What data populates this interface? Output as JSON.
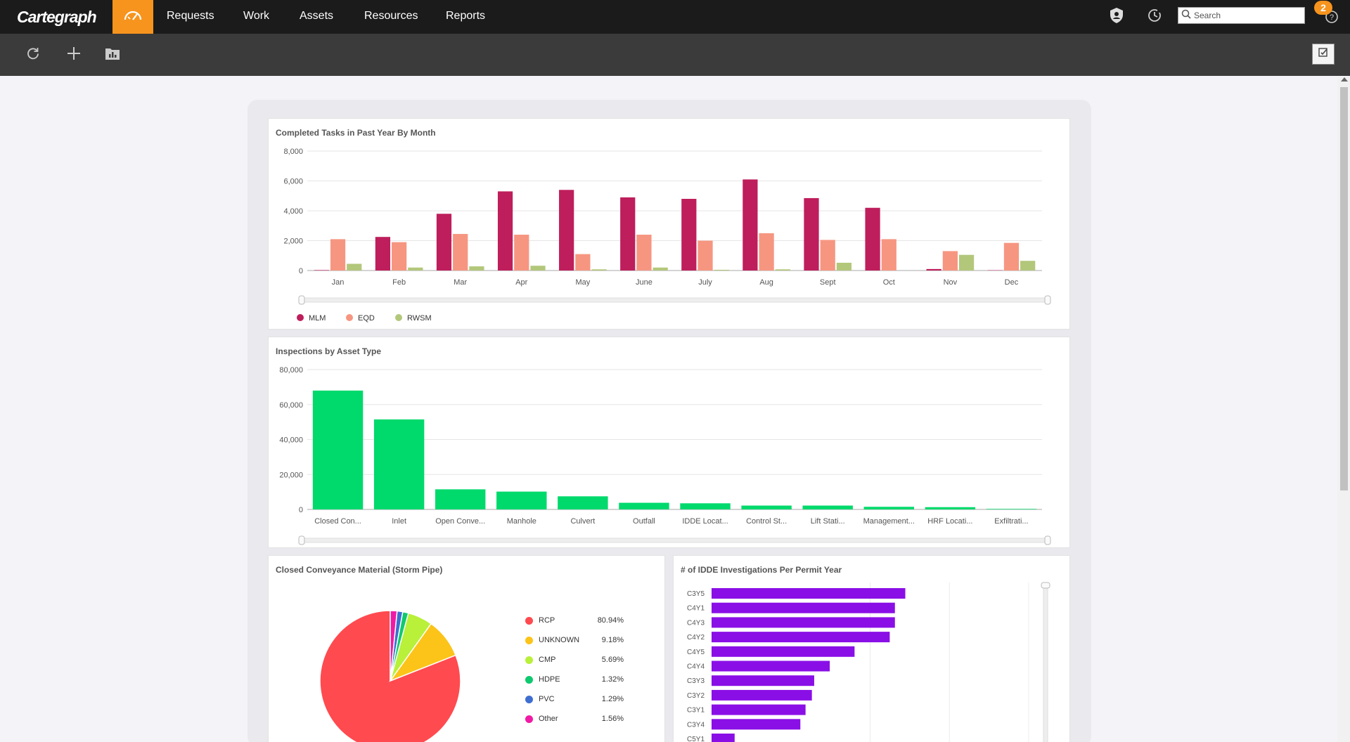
{
  "app": {
    "logo_text": "Cartegraph",
    "nav": [
      {
        "label": "Requests"
      },
      {
        "label": "Work"
      },
      {
        "label": "Assets"
      },
      {
        "label": "Resources"
      },
      {
        "label": "Reports"
      }
    ],
    "search_placeholder": "Search",
    "notification_count": "2",
    "accent_color": "#f7941d",
    "icons": {
      "home": "dashboard-gauge-icon",
      "security": "shield-icon",
      "history": "history-clock-icon",
      "help": "help-icon",
      "refresh": "refresh-icon",
      "add": "plus-icon",
      "library": "folder-chart-icon",
      "checklist": "checklist-icon"
    }
  },
  "cards": {
    "completed_tasks": {
      "title": "Completed Tasks in Past Year By Month"
    },
    "inspections": {
      "title": "Inspections by Asset Type"
    },
    "material": {
      "title": "Closed Conveyance Material (Storm Pipe)"
    },
    "idde": {
      "title": "# of IDDE Investigations Per Permit Year"
    }
  },
  "chart_data": [
    {
      "type": "bar",
      "title": "Completed Tasks in Past Year By Month",
      "categories": [
        "Jan",
        "Feb",
        "Mar",
        "Apr",
        "May",
        "June",
        "July",
        "Aug",
        "Sept",
        "Oct",
        "Nov",
        "Dec"
      ],
      "series": [
        {
          "name": "MLM",
          "color": "#be1e5c",
          "values": [
            30,
            2250,
            3800,
            5300,
            5400,
            4900,
            4800,
            6100,
            4850,
            4200,
            100,
            20
          ]
        },
        {
          "name": "EQD",
          "color": "#f69681",
          "values": [
            2100,
            1900,
            2450,
            2400,
            1100,
            2400,
            2000,
            2500,
            2050,
            2100,
            1300,
            1850
          ]
        },
        {
          "name": "RWSM",
          "color": "#b3c77b",
          "values": [
            450,
            200,
            280,
            320,
            80,
            200,
            50,
            80,
            520,
            0,
            1050,
            650
          ]
        }
      ],
      "yticks": [
        "0",
        "2,000",
        "4,000",
        "6,000",
        "8,000"
      ],
      "ylim": [
        0,
        8000
      ],
      "legend": "bottom-left"
    },
    {
      "type": "bar",
      "title": "Inspections by Asset Type",
      "categories": [
        "Closed Con...",
        "Inlet",
        "Open Conve...",
        "Manhole",
        "Culvert",
        "Outfall",
        "IDDE Locat...",
        "Control St...",
        "Lift Stati...",
        "Management...",
        "HRF Locati...",
        "Exfiltrati..."
      ],
      "series": [
        {
          "name": "",
          "color": "#00d96c",
          "values": [
            68000,
            51500,
            11500,
            10200,
            7500,
            3800,
            3500,
            2200,
            2200,
            1500,
            1300,
            300
          ]
        }
      ],
      "yticks": [
        "0",
        "20,000",
        "40,000",
        "60,000",
        "80,000"
      ],
      "ylim": [
        0,
        80000
      ]
    },
    {
      "type": "pie",
      "title": "Closed Conveyance Material (Storm Pipe)",
      "slices": [
        {
          "name": "RCP",
          "value": 80.94,
          "label": "80.94%",
          "color": "#ff4a4f"
        },
        {
          "name": "UNKNOWN",
          "value": 9.18,
          "label": "9.18%",
          "color": "#fcc419"
        },
        {
          "name": "CMP",
          "value": 5.69,
          "label": "5.69%",
          "color": "#b8f03a"
        },
        {
          "name": "HDPE",
          "value": 1.32,
          "label": "1.32%",
          "color": "#0fc96e"
        },
        {
          "name": "PVC",
          "value": 1.29,
          "label": "1.29%",
          "color": "#3e6ed0"
        },
        {
          "name": "Other",
          "value": 1.56,
          "label": "1.56%",
          "color": "#f01aa5"
        }
      ],
      "legend": "right"
    },
    {
      "type": "bar",
      "title": "# of IDDE Investigations Per Permit Year",
      "orientation": "horizontal",
      "categories": [
        "C3Y5",
        "C4Y1",
        "C4Y3",
        "C4Y2",
        "C4Y5",
        "C4Y4",
        "C3Y3",
        "C3Y2",
        "C3Y1",
        "C3Y4",
        "C5Y1"
      ],
      "series": [
        {
          "name": "",
          "color": "#8a0fe6",
          "values": [
            336,
            318,
            318,
            309,
            248,
            205,
            178,
            174,
            163,
            154,
            40
          ]
        }
      ]
    }
  ]
}
